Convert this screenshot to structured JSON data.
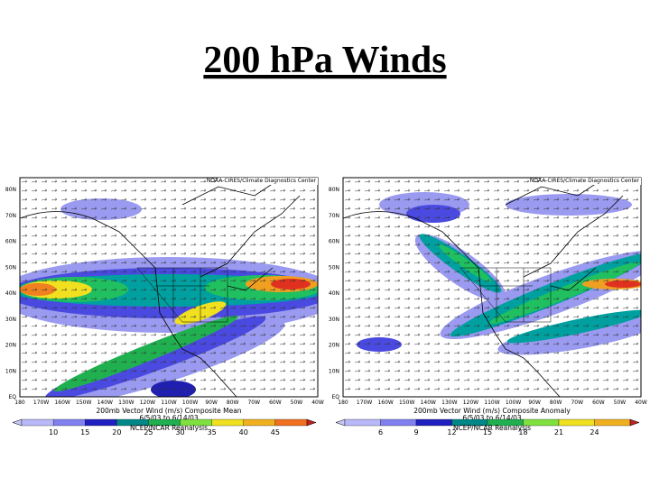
{
  "title": "200 hPa Winds",
  "panels": [
    {
      "credit": "NOAA-CIRES/Climate Diagnostics Center",
      "lat_labels": [
        "80N",
        "70N",
        "60N",
        "50N",
        "40N",
        "30N",
        "20N",
        "10N",
        "EQ"
      ],
      "lon_labels": [
        "180",
        "170W",
        "160W",
        "150W",
        "140W",
        "130W",
        "120W",
        "110W",
        "100W",
        "90W",
        "80W",
        "70W",
        "60W",
        "50W",
        "40W"
      ],
      "caption": "200mb Vector Wind (m/s) Composite Mean",
      "dates": "6/5/03  to 6/14/03",
      "source": "NCEP/NCAR Reanalysis",
      "colorbar_ticks": [
        10,
        15,
        20,
        25,
        30,
        35,
        40,
        45
      ]
    },
    {
      "credit": "NOAA-CIRES/Climate Diagnostics Center",
      "lat_labels": [
        "80N",
        "70N",
        "60N",
        "50N",
        "40N",
        "30N",
        "20N",
        "10N",
        "EQ"
      ],
      "lon_labels": [
        "180",
        "170W",
        "160W",
        "150W",
        "140W",
        "130W",
        "120W",
        "110W",
        "100W",
        "90W",
        "80W",
        "70W",
        "60W",
        "50W",
        "40W"
      ],
      "caption": "200mb Vector Wind (m/s) Composite Anomaly",
      "dates": "6/5/03  to 6/14/03",
      "source": "NCEP/NCAR Reanalysis",
      "colorbar_ticks": [
        6,
        9,
        12,
        15,
        18,
        21,
        24
      ]
    }
  ]
}
